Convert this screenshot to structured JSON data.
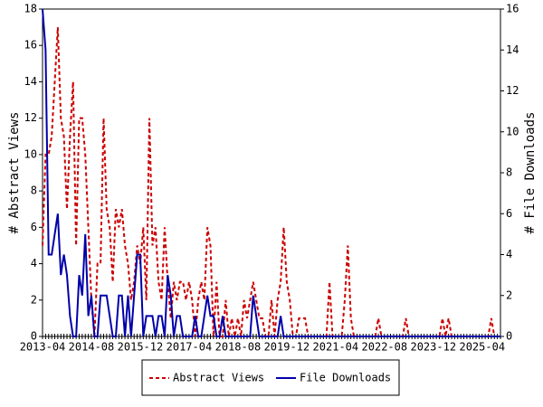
{
  "chart_data": {
    "type": "line",
    "y_label": "# Abstract Views",
    "y2_label": "# File Downloads",
    "categories": [
      "2013-04",
      "2013-05",
      "2013-06",
      "2013-07",
      "2013-08",
      "2013-09",
      "2013-10",
      "2013-11",
      "2013-12",
      "2014-01",
      "2014-02",
      "2014-03",
      "2014-04",
      "2014-05",
      "2014-06",
      "2014-07",
      "2014-08",
      "2014-09",
      "2014-10",
      "2014-11",
      "2014-12",
      "2015-01",
      "2015-02",
      "2015-03",
      "2015-04",
      "2015-05",
      "2015-06",
      "2015-07",
      "2015-08",
      "2015-09",
      "2015-10",
      "2015-11",
      "2015-12",
      "2016-01",
      "2016-02",
      "2016-03",
      "2016-04",
      "2016-05",
      "2016-06",
      "2016-07",
      "2016-08",
      "2016-09",
      "2016-10",
      "2016-11",
      "2016-12",
      "2017-01",
      "2017-02",
      "2017-03",
      "2017-04",
      "2017-05",
      "2017-06",
      "2017-07",
      "2017-08",
      "2017-09",
      "2017-10",
      "2017-11",
      "2017-12",
      "2018-01",
      "2018-02",
      "2018-03",
      "2018-04",
      "2018-05",
      "2018-06",
      "2018-07",
      "2018-08",
      "2018-09",
      "2018-10",
      "2018-11",
      "2018-12",
      "2019-01",
      "2019-02",
      "2019-03",
      "2019-04",
      "2019-05",
      "2019-06",
      "2019-07",
      "2019-08",
      "2019-09",
      "2019-10",
      "2019-11",
      "2019-12",
      "2020-01",
      "2020-02",
      "2020-03",
      "2020-04",
      "2020-05",
      "2020-06",
      "2020-07",
      "2020-08",
      "2020-09",
      "2020-10",
      "2020-11",
      "2020-12",
      "2021-01",
      "2021-02",
      "2021-03",
      "2021-04",
      "2021-05",
      "2021-06",
      "2021-07",
      "2021-08",
      "2021-09",
      "2021-10",
      "2021-11",
      "2021-12",
      "2022-01",
      "2022-02",
      "2022-03",
      "2022-04",
      "2022-05",
      "2022-06",
      "2022-07",
      "2022-08",
      "2022-09",
      "2022-10",
      "2022-11",
      "2022-12",
      "2023-01",
      "2023-02",
      "2023-03",
      "2023-04",
      "2023-05",
      "2023-06",
      "2023-07",
      "2023-08",
      "2023-09",
      "2023-10",
      "2023-11",
      "2023-12",
      "2024-01",
      "2024-02",
      "2024-03",
      "2024-04",
      "2024-05",
      "2024-06",
      "2024-07",
      "2024-08",
      "2024-09",
      "2024-10",
      "2024-11",
      "2024-12",
      "2025-01",
      "2025-02",
      "2025-03",
      "2025-04",
      "2025-05",
      "2025-06",
      "2025-07",
      "2025-08",
      "2025-09",
      "2025-10"
    ],
    "series": [
      {
        "name": "Abstract Views",
        "color": "#cc0000",
        "dash": true,
        "axis": "y",
        "values": [
          5,
          10,
          10,
          11,
          14,
          17,
          12,
          11,
          7,
          11,
          14,
          5,
          12,
          12,
          10,
          6,
          2,
          0,
          4,
          4,
          12,
          7,
          6,
          3,
          7,
          6,
          7,
          5,
          4,
          2,
          3,
          5,
          4,
          6,
          2,
          12,
          5,
          6,
          3,
          2,
          6,
          3,
          1,
          3,
          2,
          3,
          3,
          2,
          3,
          2,
          0,
          2,
          3,
          2,
          6,
          5,
          0,
          3,
          0,
          0,
          2,
          0,
          1,
          0,
          1,
          0,
          2,
          1,
          2,
          3,
          2,
          1,
          1,
          0,
          0,
          2,
          0,
          2,
          3,
          6,
          3,
          2,
          0,
          0,
          1,
          1,
          1,
          0,
          0,
          0,
          0,
          0,
          0,
          0,
          3,
          0,
          0,
          0,
          0,
          2,
          5,
          1,
          0,
          0,
          0,
          0,
          0,
          0,
          0,
          0,
          1,
          0,
          0,
          0,
          0,
          0,
          0,
          0,
          0,
          1,
          0,
          0,
          0,
          0,
          0,
          0,
          0,
          0,
          0,
          0,
          0,
          1,
          0,
          1,
          0,
          0,
          0,
          0,
          0,
          0,
          0,
          0,
          0,
          0,
          0,
          0,
          0,
          1,
          0,
          0,
          0
        ]
      },
      {
        "name": "File Downloads",
        "color": "#0000aa",
        "dash": false,
        "axis": "y2",
        "values": [
          16,
          14,
          4,
          4,
          5,
          6,
          3,
          4,
          3,
          1,
          0,
          0,
          3,
          2,
          5,
          1,
          2,
          0,
          0,
          2,
          2,
          2,
          1,
          0,
          0,
          2,
          2,
          0,
          2,
          0,
          2,
          4,
          4,
          0,
          1,
          1,
          1,
          0,
          1,
          1,
          0,
          3,
          2,
          0,
          1,
          1,
          0,
          0,
          0,
          0,
          1,
          0,
          0,
          1,
          2,
          1,
          1,
          0,
          0,
          1,
          0,
          0,
          0,
          0,
          0,
          0,
          0,
          0,
          0,
          2,
          1,
          0,
          0,
          0,
          0,
          0,
          0,
          0,
          1,
          0,
          0,
          0,
          0,
          0,
          0,
          0,
          0,
          0,
          0,
          0,
          0,
          0,
          0,
          0,
          0,
          0,
          0,
          0,
          0,
          0,
          0,
          0,
          0,
          0,
          0,
          0,
          0,
          0,
          0,
          0,
          0,
          0,
          0,
          0,
          0,
          0,
          0,
          0,
          0,
          0,
          0,
          0,
          0,
          0,
          0,
          0,
          0,
          0,
          0,
          0,
          0,
          0,
          0,
          0,
          0,
          0,
          0,
          0,
          0,
          0,
          0,
          0,
          0,
          0,
          0,
          0,
          0,
          0,
          0,
          0,
          0
        ]
      }
    ],
    "xticks": [
      "2013-04",
      "2014-08",
      "2015-12",
      "2017-04",
      "2018-08",
      "2019-12",
      "2021-04",
      "2022-08",
      "2023-12",
      "2025-04"
    ],
    "ylim": [
      0,
      18
    ],
    "yticks": [
      0,
      2,
      4,
      6,
      8,
      10,
      12,
      14,
      16,
      18
    ],
    "y2lim": [
      0,
      16
    ],
    "y2ticks": [
      0,
      2,
      4,
      6,
      8,
      10,
      12,
      14,
      16
    ],
    "legend": "bottom"
  }
}
